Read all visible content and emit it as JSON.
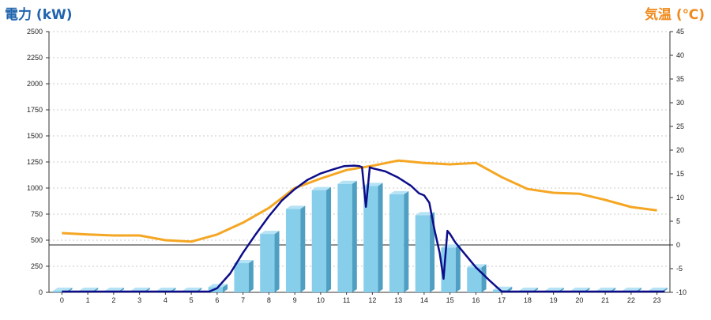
{
  "chart_data": {
    "type": "bar",
    "left_axis_title": "電力 (kW)",
    "right_axis_title": "気温 (℃)",
    "categories": [
      "0",
      "1",
      "2",
      "3",
      "4",
      "5",
      "6",
      "7",
      "8",
      "9",
      "10",
      "11",
      "12",
      "13",
      "14",
      "15",
      "16",
      "17",
      "18",
      "19",
      "20",
      "21",
      "22",
      "23"
    ],
    "y_left": {
      "min": 0,
      "max": 2500,
      "ticks": [
        0,
        250,
        500,
        750,
        1000,
        1250,
        1500,
        1750,
        2000,
        2250,
        2500
      ]
    },
    "y_right": {
      "min": -10,
      "max": 45,
      "ticks": [
        -10,
        -5,
        0,
        5,
        10,
        15,
        20,
        25,
        30,
        35,
        40,
        45
      ]
    },
    "grid": true,
    "colors": {
      "bars": "#87ceeb",
      "bars_side": "#4f9fc2",
      "bars_top": "#b5e2f5",
      "power_line": "#0d0d8a",
      "temperature_line": "#f5a623",
      "left_title": "#1f64ad",
      "right_title": "#f08a1c"
    },
    "bars": [
      0,
      0,
      0,
      0,
      0,
      0,
      50,
      280,
      560,
      800,
      980,
      1040,
      1020,
      940,
      740,
      430,
      240,
      25,
      0,
      0,
      0,
      0,
      0,
      0
    ],
    "temperature": [
      [
        0,
        2.5
      ],
      [
        1,
        2.2
      ],
      [
        2,
        2.0
      ],
      [
        3,
        2.0
      ],
      [
        4,
        1.0
      ],
      [
        5,
        0.7
      ],
      [
        6,
        2.2
      ],
      [
        7,
        4.7
      ],
      [
        8,
        7.8
      ],
      [
        9,
        12.0
      ],
      [
        10,
        14.0
      ],
      [
        11,
        15.8
      ],
      [
        12,
        16.7
      ],
      [
        13,
        17.8
      ],
      [
        14,
        17.3
      ],
      [
        15,
        17.0
      ],
      [
        16,
        17.3
      ],
      [
        17,
        14.3
      ],
      [
        18,
        11.8
      ],
      [
        19,
        11.0
      ],
      [
        20,
        10.8
      ],
      [
        21,
        9.5
      ],
      [
        22,
        8.0
      ],
      [
        23,
        7.3
      ]
    ],
    "power": [
      [
        0,
        0
      ],
      [
        5.7,
        0
      ],
      [
        6,
        40
      ],
      [
        6.5,
        180
      ],
      [
        7,
        380
      ],
      [
        7.5,
        560
      ],
      [
        8,
        730
      ],
      [
        8.5,
        880
      ],
      [
        9,
        990
      ],
      [
        9.5,
        1080
      ],
      [
        10,
        1140
      ],
      [
        10.5,
        1180
      ],
      [
        10.9,
        1210
      ],
      [
        11.3,
        1215
      ],
      [
        11.5,
        1210
      ],
      [
        11.6,
        1200
      ],
      [
        11.75,
        820
      ],
      [
        11.9,
        1200
      ],
      [
        12,
        1190
      ],
      [
        12.5,
        1160
      ],
      [
        13,
        1100
      ],
      [
        13.5,
        1020
      ],
      [
        13.8,
        950
      ],
      [
        14,
        930
      ],
      [
        14.2,
        860
      ],
      [
        14.4,
        600
      ],
      [
        14.6,
        380
      ],
      [
        14.75,
        130
      ],
      [
        14.9,
        590
      ],
      [
        15,
        560
      ],
      [
        15.2,
        480
      ],
      [
        15.5,
        390
      ],
      [
        15.8,
        300
      ],
      [
        16,
        240
      ],
      [
        16.5,
        120
      ],
      [
        17,
        0
      ],
      [
        23.3,
        0
      ]
    ]
  }
}
